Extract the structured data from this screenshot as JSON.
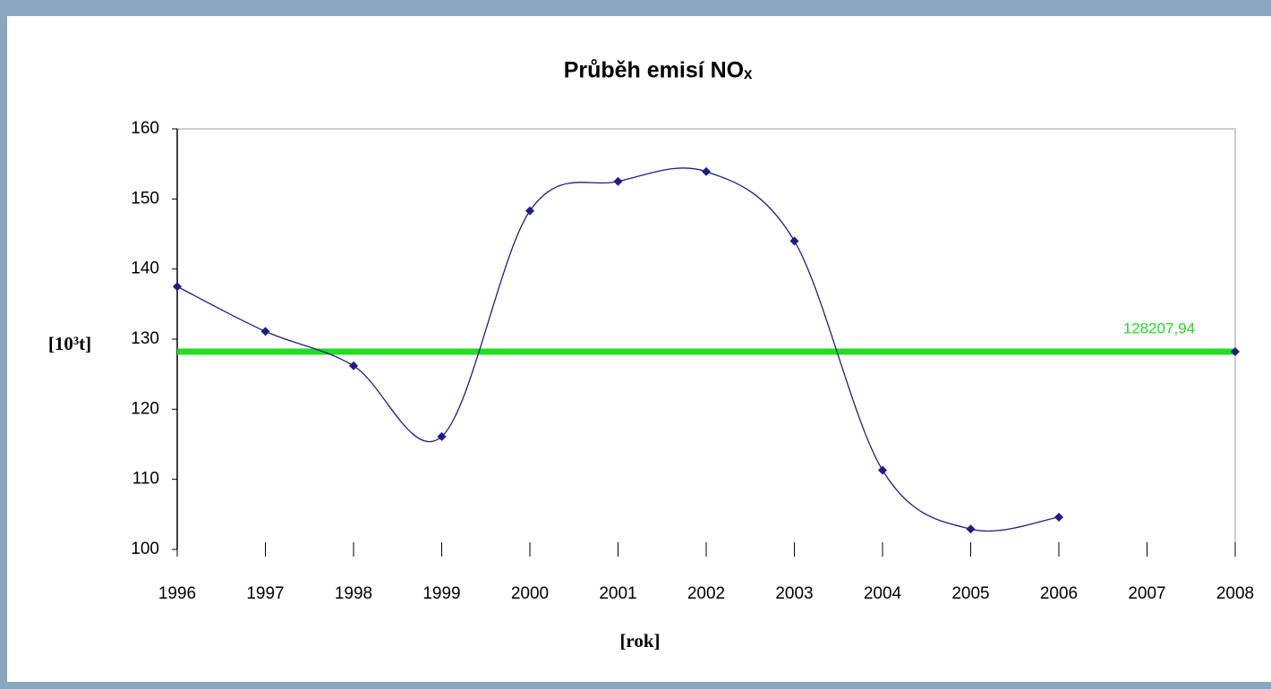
{
  "chart_data": {
    "type": "line",
    "title": "Průběh emisí NOₓ",
    "ylabel": "[10³t]",
    "xlabel": "[rok]",
    "x": [
      1996,
      1997,
      1998,
      1999,
      2000,
      2001,
      2002,
      2003,
      2004,
      2005,
      2006
    ],
    "series": [
      {
        "color": "#1c1c8a",
        "values": [
          137.5,
          131.1,
          126.2,
          116.1,
          148.3,
          152.5,
          153.9,
          144.0,
          111.3,
          102.9,
          104.6
        ]
      }
    ],
    "reference_line": {
      "value": 128.20794,
      "label": "128207,94",
      "color": "#22dd22"
    },
    "xlim": [
      1996,
      2008
    ],
    "xticks": [
      1996,
      1997,
      1998,
      1999,
      2000,
      2001,
      2002,
      2003,
      2004,
      2005,
      2006,
      2007,
      2008
    ],
    "ylim": [
      100,
      160
    ],
    "yticks": [
      100,
      110,
      120,
      130,
      140,
      150,
      160
    ]
  }
}
